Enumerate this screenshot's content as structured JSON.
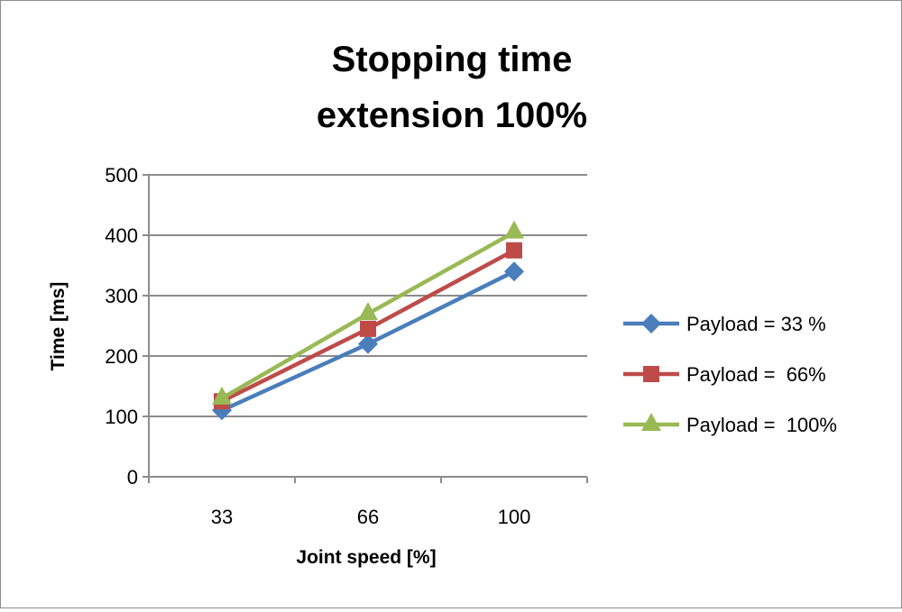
{
  "chart_data": {
    "type": "line",
    "title_lines": [
      "Stopping time",
      "extension 100%"
    ],
    "xlabel": "Joint speed [%]",
    "ylabel": "Time [ms]",
    "categories": [
      "33",
      "66",
      "100"
    ],
    "ylim": [
      0,
      500
    ],
    "yticks": [
      0,
      100,
      200,
      300,
      400,
      500
    ],
    "grid": true,
    "legend_position": "right",
    "series": [
      {
        "name": "Payload = 33 %",
        "values": [
          110,
          220,
          340
        ],
        "color": "#4a7ebb",
        "marker": "diamond"
      },
      {
        "name": "Payload =  66%",
        "values": [
          125,
          245,
          375
        ],
        "color": "#be4b48",
        "marker": "square"
      },
      {
        "name": "Payload =  100%",
        "values": [
          130,
          270,
          405
        ],
        "color": "#98b954",
        "marker": "triangle"
      }
    ]
  }
}
